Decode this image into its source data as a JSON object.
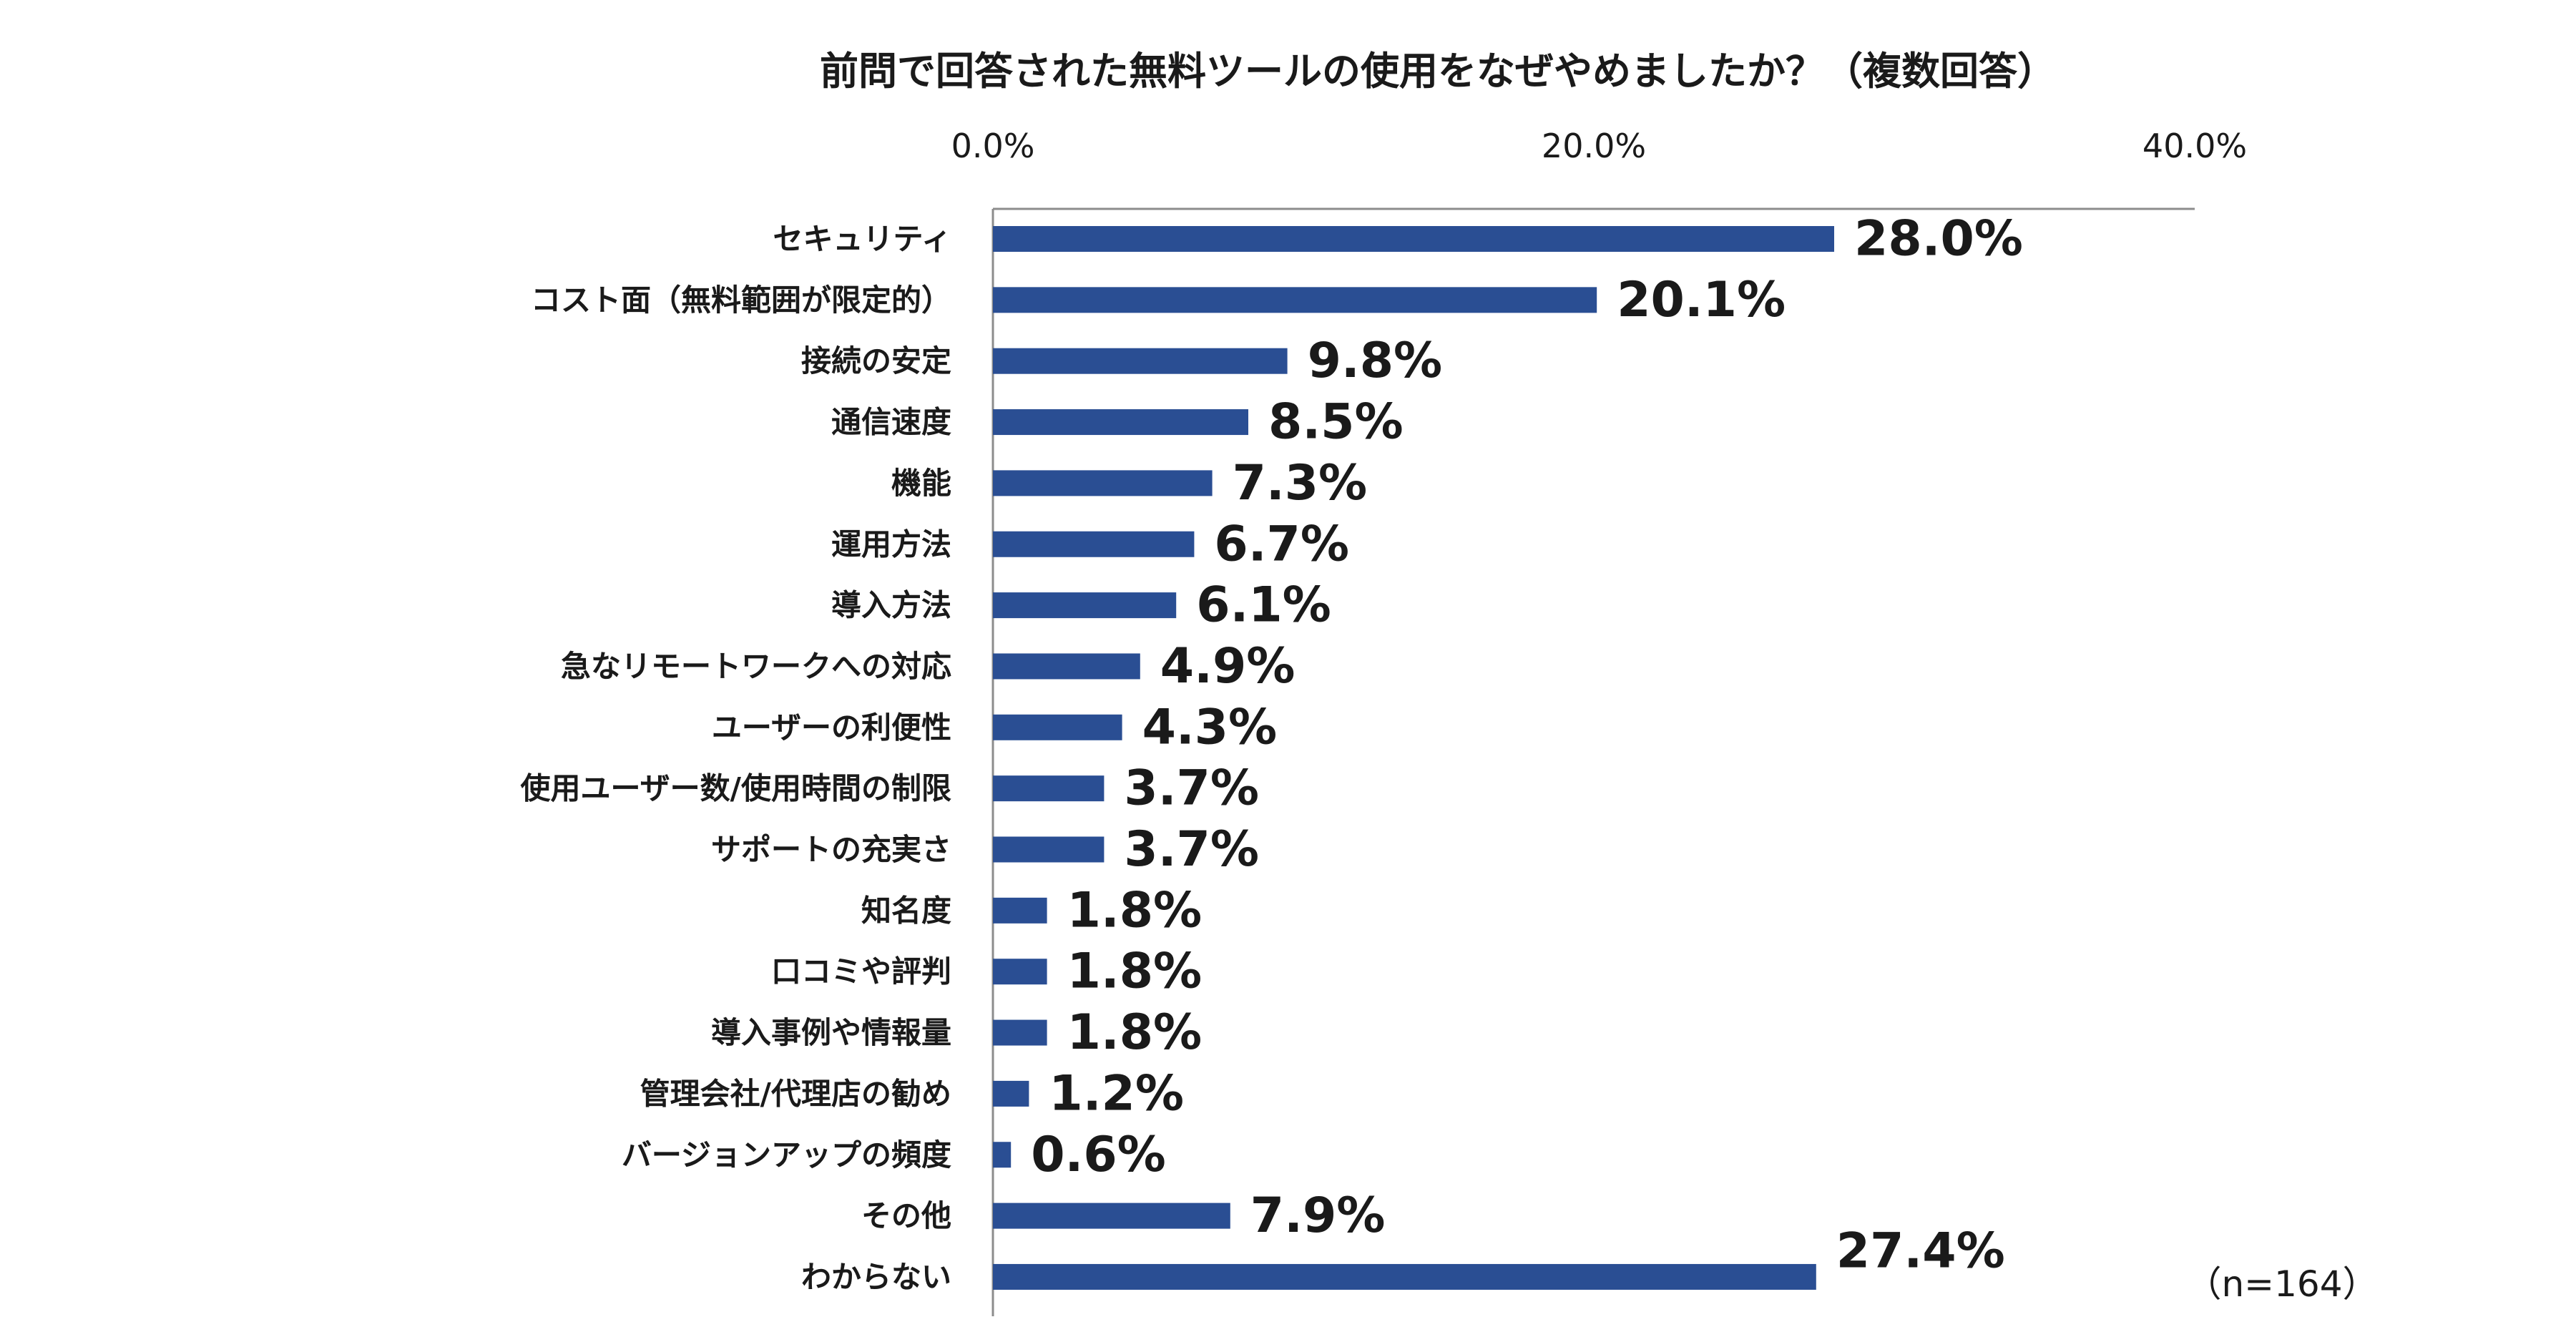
{
  "chart_data": {
    "type": "bar",
    "orientation": "horizontal",
    "title": "前問で回答された無料ツールの使用をなぜやめましたか？（複数回答）",
    "categories": [
      "セキュリティ",
      "コスト面（無料範囲が限定的）",
      "接続の安定",
      "通信速度",
      "機能",
      "運用方法",
      "導入方法",
      "急なリモートワークへの対応",
      "ユーザーの利便性",
      "使用ユーザー数/使用時間の制限",
      "サポートの充実さ",
      "知名度",
      "口コミや評判",
      "導入事例や情報量",
      "管理会社/代理店の勧め",
      "バージョンアップの頻度",
      "その他",
      "わからない"
    ],
    "values": [
      28.0,
      20.1,
      9.8,
      8.5,
      7.3,
      6.7,
      6.1,
      4.9,
      4.3,
      3.7,
      3.7,
      1.8,
      1.8,
      1.8,
      1.2,
      0.6,
      7.9,
      27.4
    ],
    "value_labels": [
      "28.0%",
      "20.1%",
      "9.8%",
      "8.5%",
      "7.3%",
      "6.7%",
      "6.1%",
      "4.9%",
      "4.3%",
      "3.7%",
      "3.7%",
      "1.8%",
      "1.8%",
      "1.8%",
      "1.2%",
      "0.6%",
      "7.9%",
      "27.4%"
    ],
    "xlim": [
      0,
      40
    ],
    "xticks": [
      0,
      20,
      40
    ],
    "xtick_labels": [
      "0.0%",
      "20.0%",
      "40.0%"
    ],
    "axis_position": "top",
    "grid": false,
    "bar_color": "#2a4e93",
    "note": "（n=164）"
  }
}
